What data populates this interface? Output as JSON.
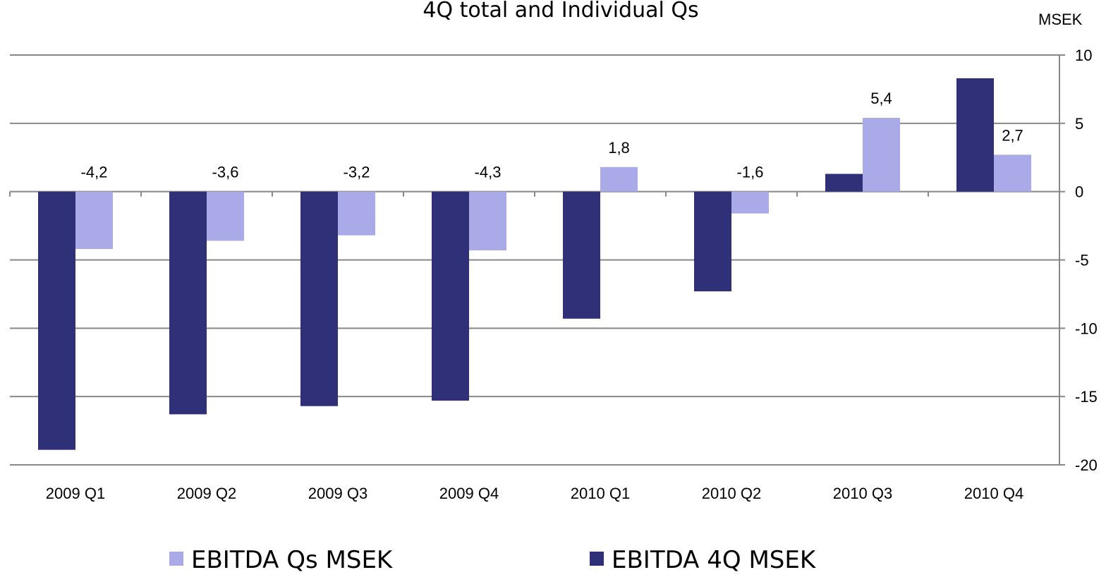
{
  "chart_data": {
    "type": "bar",
    "title": "4Q total and Individual Qs",
    "y_label": "MSEK",
    "categories": [
      "2009 Q1",
      "2009 Q2",
      "2009 Q3",
      "2009 Q4",
      "2010 Q1",
      "2010 Q2",
      "2010 Q3",
      "2010 Q4"
    ],
    "series": [
      {
        "name": "EBITDA 4Q MSEK",
        "color": "#303078",
        "values": [
          -18.9,
          -16.3,
          -15.7,
          -15.3,
          -9.3,
          -7.3,
          1.3,
          8.3
        ]
      },
      {
        "name": "EBITDA Qs MSEK",
        "color": "#aaaae8",
        "values": [
          -4.2,
          -3.6,
          -3.2,
          -4.3,
          1.8,
          -1.6,
          5.4,
          2.7
        ],
        "value_labels": [
          "-4,2",
          "-3,6",
          "-3,2",
          "-4,3",
          "1,8",
          "-1,6",
          "5,4",
          "2,7"
        ]
      }
    ],
    "ylim": [
      -20,
      10
    ],
    "yticks": [
      -20,
      -15,
      -10,
      -5,
      0,
      5,
      10
    ],
    "grid": true,
    "y_axis_side": "right",
    "legend": "bottom"
  }
}
